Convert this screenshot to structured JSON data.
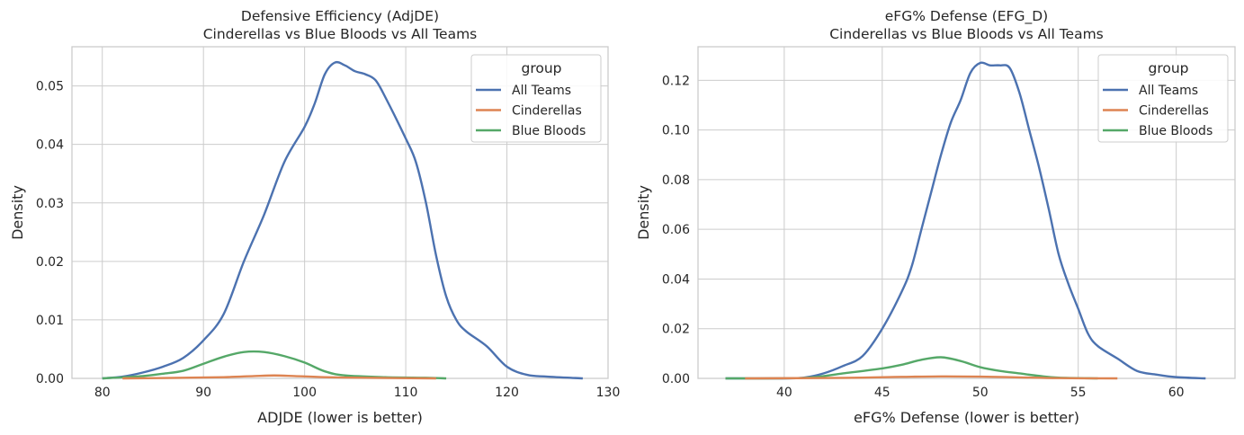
{
  "colors": {
    "All Teams": "#4c72b0",
    "Cinderellas": "#dd8452",
    "Blue Bloods": "#55a868",
    "grid": "#cccccc",
    "frame": "#cccccc"
  },
  "chart_data": [
    {
      "type": "line",
      "title": "Defensive Efficiency (AdjDE)\nCinderellas vs Blue Bloods vs All Teams",
      "title_lines": [
        "Defensive Efficiency (AdjDE)",
        "Cinderellas vs Blue Bloods vs All Teams"
      ],
      "xlabel": "ADJDE (lower is better)",
      "ylabel": "Density",
      "xlim": [
        77,
        130
      ],
      "ylim": [
        0,
        0.0567
      ],
      "xticks": [
        80,
        90,
        100,
        110,
        120,
        130
      ],
      "yticks": [
        0.0,
        0.01,
        0.02,
        0.03,
        0.04,
        0.05
      ],
      "ytick_labels": [
        "0.00",
        "0.01",
        "0.02",
        "0.03",
        "0.04",
        "0.05"
      ],
      "grid": true,
      "legend": {
        "title": "group",
        "placement": "top-right",
        "entries": [
          "All Teams",
          "Cinderellas",
          "Blue Bloods"
        ]
      },
      "series": [
        {
          "name": "All Teams",
          "x": [
            80,
            82,
            84,
            86,
            88,
            90,
            92,
            94,
            96,
            98,
            100,
            101,
            102,
            103,
            104,
            105,
            106,
            107,
            108,
            110,
            111,
            112,
            113,
            114,
            115,
            116,
            118,
            120,
            122,
            124,
            127.5
          ],
          "y": [
            0,
            0.0003,
            0.001,
            0.002,
            0.0035,
            0.0065,
            0.011,
            0.02,
            0.028,
            0.037,
            0.043,
            0.047,
            0.052,
            0.054,
            0.0535,
            0.0525,
            0.052,
            0.051,
            0.048,
            0.041,
            0.037,
            0.03,
            0.021,
            0.014,
            0.01,
            0.008,
            0.0055,
            0.002,
            0.0006,
            0.0003,
            0
          ]
        },
        {
          "name": "Cinderellas",
          "x": [
            82,
            88,
            92,
            95,
            97,
            99,
            102,
            106,
            113
          ],
          "y": [
            0,
            0.0001,
            0.0002,
            0.0004,
            0.0005,
            0.0004,
            0.0002,
            0.0001,
            0
          ]
        },
        {
          "name": "Blue Bloods",
          "x": [
            80,
            84,
            86,
            88,
            90,
            92,
            94,
            96,
            98,
            100,
            102,
            104,
            108,
            112,
            114
          ],
          "y": [
            0,
            0.0004,
            0.0008,
            0.0013,
            0.0025,
            0.0037,
            0.0045,
            0.0045,
            0.0038,
            0.0027,
            0.0012,
            0.0005,
            0.0002,
            0.0001,
            0
          ]
        }
      ]
    },
    {
      "type": "line",
      "title": "eFG% Defense (EFG_D)\nCinderellas vs Blue Bloods vs All Teams",
      "title_lines": [
        "eFG% Defense (EFG_D)",
        "Cinderellas vs Blue Bloods vs All Teams"
      ],
      "xlabel": "eFG% Defense (lower is better)",
      "ylabel": "Density",
      "xlim": [
        35.6,
        63
      ],
      "ylim": [
        0,
        0.1335
      ],
      "xticks": [
        40,
        45,
        50,
        55,
        60
      ],
      "yticks": [
        0,
        0.02,
        0.04,
        0.06,
        0.08,
        0.1,
        0.12
      ],
      "ytick_labels": [
        "0.00",
        "0.02",
        "0.04",
        "0.06",
        "0.08",
        "0.10",
        "0.12"
      ],
      "grid": true,
      "legend": {
        "title": "group",
        "placement": "top-right",
        "entries": [
          "All Teams",
          "Cinderellas",
          "Blue Bloods"
        ]
      },
      "series": [
        {
          "name": "All Teams",
          "x": [
            37,
            40,
            41,
            42,
            43,
            44,
            45,
            46,
            46.5,
            47,
            47.5,
            48,
            48.5,
            49,
            49.5,
            50,
            50.5,
            51,
            51.5,
            52,
            52.5,
            53,
            53.5,
            54,
            54.5,
            55,
            55.5,
            56,
            57,
            58,
            59,
            60,
            61.5
          ],
          "y": [
            0,
            0,
            0.0003,
            0.002,
            0.005,
            0.009,
            0.02,
            0.035,
            0.045,
            0.06,
            0.075,
            0.09,
            0.103,
            0.112,
            0.123,
            0.127,
            0.126,
            0.126,
            0.125,
            0.115,
            0.1,
            0.085,
            0.068,
            0.05,
            0.038,
            0.028,
            0.018,
            0.013,
            0.008,
            0.003,
            0.0015,
            0.0005,
            0
          ]
        },
        {
          "name": "Cinderellas",
          "x": [
            38,
            43,
            46,
            48,
            50,
            52,
            54,
            57
          ],
          "y": [
            0,
            0.0002,
            0.0006,
            0.0008,
            0.0007,
            0.0004,
            0.0001,
            0
          ]
        },
        {
          "name": "Blue Bloods",
          "x": [
            37,
            41,
            43,
            45,
            46,
            47,
            48,
            49,
            50,
            51,
            52,
            53,
            54,
            56
          ],
          "y": [
            0,
            0.0002,
            0.002,
            0.004,
            0.0055,
            0.0075,
            0.0085,
            0.007,
            0.0045,
            0.003,
            0.002,
            0.001,
            0.0003,
            0
          ]
        }
      ]
    }
  ]
}
